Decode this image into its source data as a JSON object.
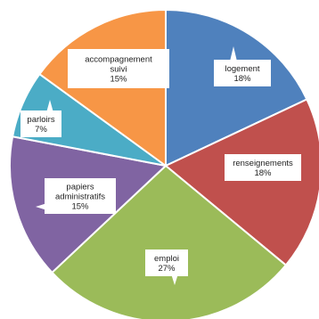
{
  "chart_data": {
    "type": "pie",
    "start": "top",
    "direction": "clockwise",
    "slices": [
      {
        "label": "logement",
        "value": 18,
        "display": "18%",
        "color": "#4F81BD"
      },
      {
        "label": "renseignements",
        "value": 18,
        "display": "18%",
        "color": "#C0504D"
      },
      {
        "label": "emploi",
        "value": 27,
        "display": "27%",
        "color": "#9BBB59"
      },
      {
        "label": "papiers administratifs",
        "value": 15,
        "display": "15%",
        "color": "#8064A2"
      },
      {
        "label": "parloirs",
        "value": 7,
        "display": "7%",
        "color": "#4BACC6"
      },
      {
        "label": "accompagnement suivi",
        "value": 15,
        "display": "15%",
        "color": "#F79646"
      }
    ]
  }
}
